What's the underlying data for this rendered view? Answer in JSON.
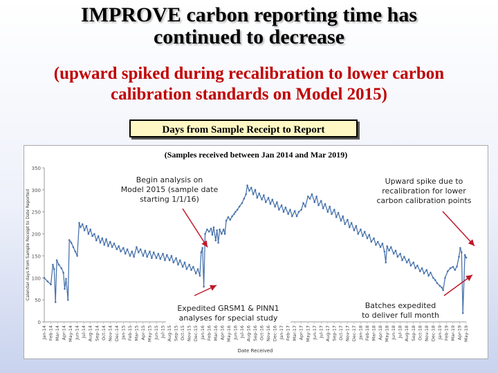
{
  "slide": {
    "title_line1": "IMPROVE carbon reporting time has",
    "title_line2": "continued to decrease",
    "subtitle_line1": "(upward spiked during recalibration to lower carbon",
    "subtitle_line2": "calibration standards on Model 2015)",
    "box_label": "Days from Sample Receipt to Report"
  },
  "colors": {
    "line": "#4a74ad",
    "arrow": "#c0182a",
    "subtitle": "#c00000"
  },
  "annotations": [
    {
      "id": "begin-analysis-note",
      "lines": [
        "Begin analysis on",
        "Model 2015 (sample date",
        "starting 1/1/16)"
      ]
    },
    {
      "id": "upward-spike-note",
      "lines": [
        "Upward spike due to",
        "recalibration for lower",
        "carbon calibration points"
      ]
    },
    {
      "id": "expedited-note",
      "lines": [
        "Expedited GRSM1 & PINN1",
        "analyses for special study"
      ]
    },
    {
      "id": "batches-note",
      "lines": [
        "Batches expedited",
        "to deliver full month"
      ]
    }
  ],
  "chart_data": {
    "type": "line",
    "title": "(Samples received between Jan 2014 and Mar 2019)",
    "xlabel": "Date Received",
    "ylabel": "Calendar days from Sample Receipt to Date Reported",
    "ylim": [
      0,
      350
    ],
    "yticks": [
      0,
      50,
      100,
      150,
      200,
      250,
      300,
      350
    ],
    "categories": [
      "Jan-14",
      "Feb-14",
      "Mar-14",
      "Apr-14",
      "May-14",
      "Jun-14",
      "Jul-14",
      "Aug-14",
      "Sep-14",
      "Oct-14",
      "Nov-14",
      "Dec-14",
      "Jan-15",
      "Feb-15",
      "Mar-15",
      "Apr-15",
      "May-15",
      "Jun-15",
      "Jul-15",
      "Aug-15",
      "Sep-15",
      "Oct-15",
      "Nov-15",
      "Dec-15",
      "Jan-16",
      "Feb-16",
      "Mar-16",
      "Apr-16",
      "May-16",
      "Jun-16",
      "Jul-16",
      "Aug-16",
      "Sep-16",
      "Oct-16",
      "Nov-16",
      "Dec-16",
      "Jan-17",
      "Feb-17",
      "Mar-17",
      "Apr-17",
      "May-17",
      "Jun-17",
      "Jul-17",
      "Aug-17",
      "Sep-17",
      "Oct-17",
      "Nov-17",
      "Dec-17",
      "Jan-18",
      "Feb-18",
      "Mar-18",
      "Apr-18",
      "May-18",
      "Jun-18",
      "Jul-18",
      "Aug-18",
      "Sep-18",
      "Oct-18",
      "Nov-18",
      "Dec-18",
      "Jan-19",
      "Feb-19",
      "Mar-19",
      "Apr-19",
      "May-19"
    ],
    "series": [
      {
        "name": "Calendar days",
        "points": [
          [
            0,
            100
          ],
          [
            0.5,
            92
          ],
          [
            1,
            85
          ],
          [
            1.3,
            130
          ],
          [
            1.5,
            120
          ],
          [
            1.7,
            45
          ],
          [
            1.9,
            140
          ],
          [
            2.2,
            130
          ],
          [
            2.6,
            122
          ],
          [
            2.9,
            112
          ],
          [
            3.1,
            75
          ],
          [
            3.3,
            98
          ],
          [
            3.6,
            50
          ],
          [
            3.8,
            186
          ],
          [
            4.1,
            180
          ],
          [
            4.4,
            170
          ],
          [
            4.7,
            160
          ],
          [
            5.0,
            150
          ],
          [
            5.3,
            225
          ],
          [
            5.5,
            215
          ],
          [
            5.8,
            222
          ],
          [
            6.1,
            208
          ],
          [
            6.4,
            218
          ],
          [
            6.7,
            200
          ],
          [
            7.0,
            210
          ],
          [
            7.3,
            195
          ],
          [
            7.6,
            200
          ],
          [
            7.9,
            185
          ],
          [
            8.2,
            195
          ],
          [
            8.5,
            180
          ],
          [
            8.8,
            190
          ],
          [
            9.1,
            175
          ],
          [
            9.4,
            188
          ],
          [
            9.7,
            172
          ],
          [
            10,
            182
          ],
          [
            10.3,
            170
          ],
          [
            10.6,
            178
          ],
          [
            11,
            165
          ],
          [
            11.3,
            172
          ],
          [
            11.6,
            160
          ],
          [
            12,
            168
          ],
          [
            12.3,
            155
          ],
          [
            12.6,
            165
          ],
          [
            13,
            150
          ],
          [
            13.3,
            160
          ],
          [
            13.6,
            148
          ],
          [
            14,
            170
          ],
          [
            14.3,
            158
          ],
          [
            14.6,
            165
          ],
          [
            15,
            150
          ],
          [
            15.3,
            162
          ],
          [
            15.6,
            148
          ],
          [
            16,
            160
          ],
          [
            16.3,
            145
          ],
          [
            16.6,
            158
          ],
          [
            17,
            145
          ],
          [
            17.3,
            155
          ],
          [
            17.6,
            143
          ],
          [
            18,
            155
          ],
          [
            18.3,
            140
          ],
          [
            18.6,
            152
          ],
          [
            19,
            140
          ],
          [
            19.3,
            150
          ],
          [
            19.6,
            135
          ],
          [
            20,
            145
          ],
          [
            20.3,
            130
          ],
          [
            20.6,
            140
          ],
          [
            21,
            125
          ],
          [
            21.3,
            135
          ],
          [
            21.6,
            120
          ],
          [
            22,
            130
          ],
          [
            22.3,
            118
          ],
          [
            22.6,
            125
          ],
          [
            23,
            110
          ],
          [
            23.3,
            120
          ],
          [
            23.6,
            105
          ],
          [
            23.8,
            158
          ],
          [
            24,
            168
          ],
          [
            24.2,
            80
          ],
          [
            24.4,
            200
          ],
          [
            24.7,
            210
          ],
          [
            25,
            205
          ],
          [
            25.3,
            212
          ],
          [
            25.5,
            198
          ],
          [
            25.7,
            215
          ],
          [
            26,
            185
          ],
          [
            26.2,
            208
          ],
          [
            26.4,
            180
          ],
          [
            26.6,
            210
          ],
          [
            26.9,
            200
          ],
          [
            27.2,
            210
          ],
          [
            27.4,
            200
          ],
          [
            27.6,
            230
          ],
          [
            27.9,
            238
          ],
          [
            28.2,
            232
          ],
          [
            28.5,
            240
          ],
          [
            28.8,
            245
          ],
          [
            29,
            250
          ],
          [
            29.3,
            255
          ],
          [
            29.6,
            262
          ],
          [
            30,
            270
          ],
          [
            30.3,
            280
          ],
          [
            30.6,
            290
          ],
          [
            30.8,
            310
          ],
          [
            31.1,
            298
          ],
          [
            31.4,
            305
          ],
          [
            31.7,
            290
          ],
          [
            32,
            300
          ],
          [
            32.3,
            282
          ],
          [
            32.6,
            292
          ],
          [
            33,
            278
          ],
          [
            33.3,
            288
          ],
          [
            33.6,
            272
          ],
          [
            34,
            282
          ],
          [
            34.3,
            268
          ],
          [
            34.6,
            278
          ],
          [
            35,
            262
          ],
          [
            35.3,
            272
          ],
          [
            35.6,
            255
          ],
          [
            36,
            265
          ],
          [
            36.3,
            250
          ],
          [
            36.6,
            260
          ],
          [
            37,
            245
          ],
          [
            37.3,
            255
          ],
          [
            37.6,
            240
          ],
          [
            38,
            252
          ],
          [
            38.3,
            240
          ],
          [
            38.6,
            250
          ],
          [
            39,
            255
          ],
          [
            39.3,
            270
          ],
          [
            39.6,
            262
          ],
          [
            40,
            285
          ],
          [
            40.3,
            280
          ],
          [
            40.6,
            290
          ],
          [
            41,
            272
          ],
          [
            41.3,
            285
          ],
          [
            41.6,
            265
          ],
          [
            42,
            275
          ],
          [
            42.3,
            258
          ],
          [
            42.6,
            268
          ],
          [
            43,
            250
          ],
          [
            43.3,
            262
          ],
          [
            43.6,
            245
          ],
          [
            44,
            255
          ],
          [
            44.3,
            238
          ],
          [
            44.6,
            248
          ],
          [
            45,
            230
          ],
          [
            45.3,
            240
          ],
          [
            45.6,
            222
          ],
          [
            46,
            232
          ],
          [
            46.3,
            215
          ],
          [
            46.6,
            225
          ],
          [
            47,
            208
          ],
          [
            47.3,
            218
          ],
          [
            47.6,
            200
          ],
          [
            48,
            210
          ],
          [
            48.3,
            195
          ],
          [
            48.6,
            205
          ],
          [
            49,
            190
          ],
          [
            49.3,
            198
          ],
          [
            49.6,
            182
          ],
          [
            50,
            190
          ],
          [
            50.3,
            175
          ],
          [
            50.6,
            182
          ],
          [
            51,
            170
          ],
          [
            51.3,
            178
          ],
          [
            51.6,
            160
          ],
          [
            51.8,
            135
          ],
          [
            52,
            172
          ],
          [
            52.3,
            162
          ],
          [
            52.6,
            170
          ],
          [
            53,
            155
          ],
          [
            53.3,
            162
          ],
          [
            53.6,
            148
          ],
          [
            54,
            155
          ],
          [
            54.3,
            140
          ],
          [
            54.6,
            148
          ],
          [
            55,
            135
          ],
          [
            55.3,
            142
          ],
          [
            55.6,
            128
          ],
          [
            56,
            135
          ],
          [
            56.3,
            122
          ],
          [
            56.6,
            128
          ],
          [
            57,
            115
          ],
          [
            57.3,
            122
          ],
          [
            57.6,
            110
          ],
          [
            58,
            118
          ],
          [
            58.3,
            105
          ],
          [
            58.6,
            112
          ],
          [
            59,
            100
          ],
          [
            59.3,
            95
          ],
          [
            59.6,
            88
          ],
          [
            60,
            82
          ],
          [
            60.3,
            78
          ],
          [
            60.5,
            72
          ],
          [
            60.8,
            100
          ],
          [
            61.2,
            115
          ],
          [
            61.6,
            122
          ],
          [
            62,
            125
          ],
          [
            62.3,
            118
          ],
          [
            62.6,
            126
          ],
          [
            62.9,
            148
          ],
          [
            63.1,
            168
          ],
          [
            63.3,
            158
          ],
          [
            63.5,
            20
          ],
          [
            63.8,
            152
          ],
          [
            64,
            146
          ]
        ]
      }
    ]
  }
}
